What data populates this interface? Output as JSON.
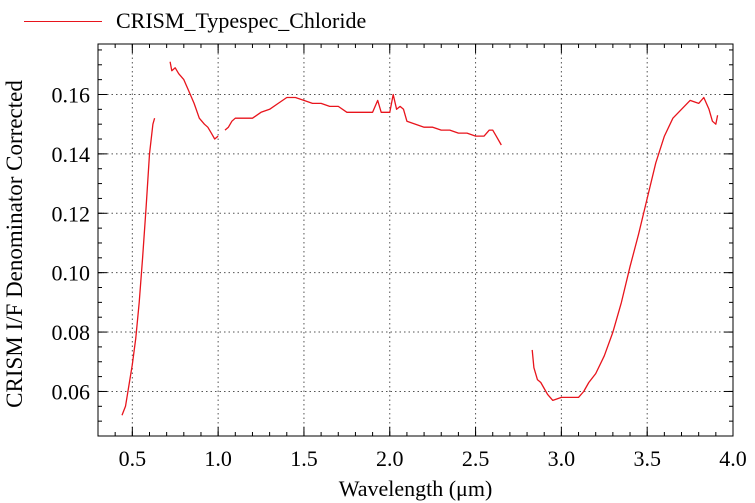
{
  "chart_data": {
    "type": "line",
    "title": "",
    "xlabel": "Wavelength (μm)",
    "ylabel": "CRISM I/F Denominator Corrected",
    "xlim": [
      0.3,
      4.0
    ],
    "ylim": [
      0.045,
      0.177
    ],
    "x_ticks": [
      "0.5",
      "1.0",
      "1.5",
      "2.0",
      "2.5",
      "3.0",
      "3.5",
      "4.0"
    ],
    "y_ticks": [
      "0.06",
      "0.08",
      "0.10",
      "0.12",
      "0.14",
      "0.16"
    ],
    "grid": true,
    "legend": "top-left",
    "series": [
      {
        "name": "CRISM_Typespec_Chloride",
        "color": "#e8141c",
        "segments": [
          [
            [
              0.44,
              0.052
            ],
            [
              0.46,
              0.055
            ],
            [
              0.48,
              0.062
            ],
            [
              0.5,
              0.069
            ],
            [
              0.52,
              0.078
            ],
            [
              0.54,
              0.09
            ],
            [
              0.56,
              0.105
            ],
            [
              0.58,
              0.122
            ],
            [
              0.6,
              0.14
            ],
            [
              0.62,
              0.15
            ],
            [
              0.63,
              0.152
            ]
          ],
          [
            [
              0.72,
              0.171
            ],
            [
              0.73,
              0.168
            ],
            [
              0.75,
              0.169
            ],
            [
              0.77,
              0.167
            ],
            [
              0.8,
              0.165
            ],
            [
              0.83,
              0.161
            ],
            [
              0.86,
              0.157
            ],
            [
              0.89,
              0.152
            ],
            [
              0.92,
              0.15
            ],
            [
              0.94,
              0.149
            ],
            [
              0.96,
              0.147
            ],
            [
              0.98,
              0.145
            ],
            [
              1.0,
              0.146
            ]
          ],
          [
            [
              1.04,
              0.148
            ],
            [
              1.06,
              0.149
            ],
            [
              1.08,
              0.151
            ],
            [
              1.1,
              0.152
            ],
            [
              1.15,
              0.152
            ],
            [
              1.2,
              0.152
            ],
            [
              1.25,
              0.154
            ],
            [
              1.3,
              0.155
            ],
            [
              1.35,
              0.157
            ],
            [
              1.4,
              0.159
            ],
            [
              1.45,
              0.159
            ],
            [
              1.5,
              0.158
            ],
            [
              1.55,
              0.157
            ],
            [
              1.6,
              0.157
            ],
            [
              1.65,
              0.156
            ],
            [
              1.7,
              0.156
            ],
            [
              1.75,
              0.154
            ],
            [
              1.8,
              0.154
            ],
            [
              1.85,
              0.154
            ],
            [
              1.9,
              0.154
            ],
            [
              1.93,
              0.158
            ],
            [
              1.95,
              0.154
            ],
            [
              2.0,
              0.154
            ],
            [
              2.02,
              0.16
            ],
            [
              2.04,
              0.155
            ],
            [
              2.06,
              0.156
            ],
            [
              2.08,
              0.155
            ],
            [
              2.1,
              0.151
            ],
            [
              2.15,
              0.15
            ],
            [
              2.2,
              0.149
            ],
            [
              2.25,
              0.149
            ],
            [
              2.3,
              0.148
            ],
            [
              2.35,
              0.148
            ],
            [
              2.4,
              0.147
            ],
            [
              2.45,
              0.147
            ],
            [
              2.5,
              0.146
            ],
            [
              2.55,
              0.146
            ],
            [
              2.58,
              0.148
            ],
            [
              2.6,
              0.148
            ],
            [
              2.62,
              0.146
            ],
            [
              2.64,
              0.144
            ],
            [
              2.65,
              0.143
            ]
          ],
          [
            [
              2.83,
              0.074
            ],
            [
              2.84,
              0.068
            ],
            [
              2.86,
              0.064
            ],
            [
              2.88,
              0.063
            ],
            [
              2.9,
              0.061
            ],
            [
              2.92,
              0.059
            ],
            [
              2.95,
              0.057
            ],
            [
              3.0,
              0.058
            ],
            [
              3.05,
              0.058
            ],
            [
              3.1,
              0.058
            ],
            [
              3.13,
              0.06
            ],
            [
              3.16,
              0.063
            ],
            [
              3.2,
              0.066
            ],
            [
              3.25,
              0.072
            ],
            [
              3.3,
              0.08
            ],
            [
              3.35,
              0.09
            ],
            [
              3.4,
              0.102
            ],
            [
              3.45,
              0.113
            ],
            [
              3.5,
              0.125
            ],
            [
              3.55,
              0.137
            ],
            [
              3.6,
              0.146
            ],
            [
              3.65,
              0.152
            ],
            [
              3.7,
              0.155
            ],
            [
              3.75,
              0.158
            ],
            [
              3.8,
              0.157
            ],
            [
              3.83,
              0.159
            ],
            [
              3.86,
              0.155
            ],
            [
              3.88,
              0.151
            ],
            [
              3.9,
              0.15
            ],
            [
              3.91,
              0.153
            ]
          ]
        ]
      }
    ]
  }
}
